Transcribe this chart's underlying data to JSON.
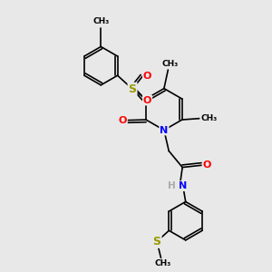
{
  "background_color": "#e8e8e8",
  "bond_color": "#000000",
  "bond_width": 1.2,
  "atom_colors": {
    "N": "#0000ff",
    "O": "#ff0000",
    "S": "#999900",
    "H": "#aaaaaa",
    "C": "#000000"
  },
  "figsize": [
    3.0,
    3.0
  ],
  "dpi": 100,
  "xlim": [
    0,
    10
  ],
  "ylim": [
    0,
    10
  ]
}
